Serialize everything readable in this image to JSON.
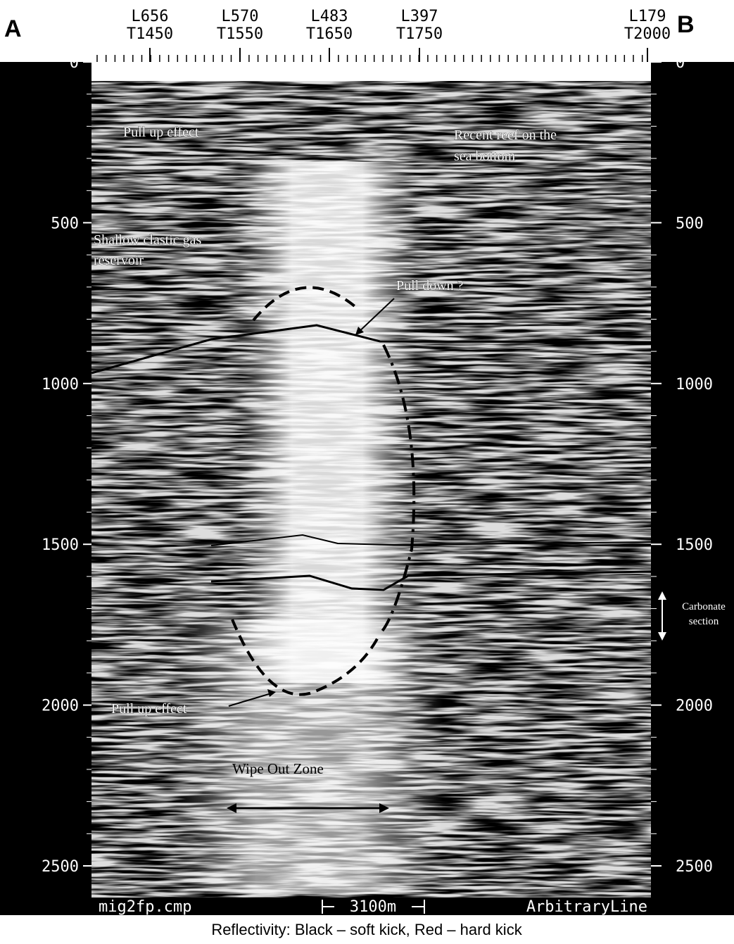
{
  "corner_labels": {
    "left": "A",
    "right": "B"
  },
  "top_labels": [
    {
      "line": "L656",
      "trace": "T1450"
    },
    {
      "line": "L570",
      "trace": "T1550"
    },
    {
      "line": "L483",
      "trace": "T1650"
    },
    {
      "line": "L397",
      "trace": "T1750"
    },
    {
      "line": "L179",
      "trace": "T2000"
    }
  ],
  "depth_ticks": [
    0,
    500,
    1000,
    1500,
    2000,
    2500
  ],
  "annotations": {
    "pull_up_top": "Pull up effect",
    "reef": [
      "Recent reef on the",
      "sea bottom"
    ],
    "gas": [
      "Shallow clastic gas",
      "reservoir"
    ],
    "pull_down": "Pull down ?",
    "carbonate": [
      "Carbonate",
      "section"
    ],
    "pull_up_bottom": "Pull up effect",
    "wipe_out": "Wipe Out Zone"
  },
  "footer": {
    "file": "mig2fp.cmp",
    "scale": "3100m",
    "line_type": "ArbitraryLine"
  },
  "caption": "Reflectivity: Black – soft kick, Red – hard kick"
}
